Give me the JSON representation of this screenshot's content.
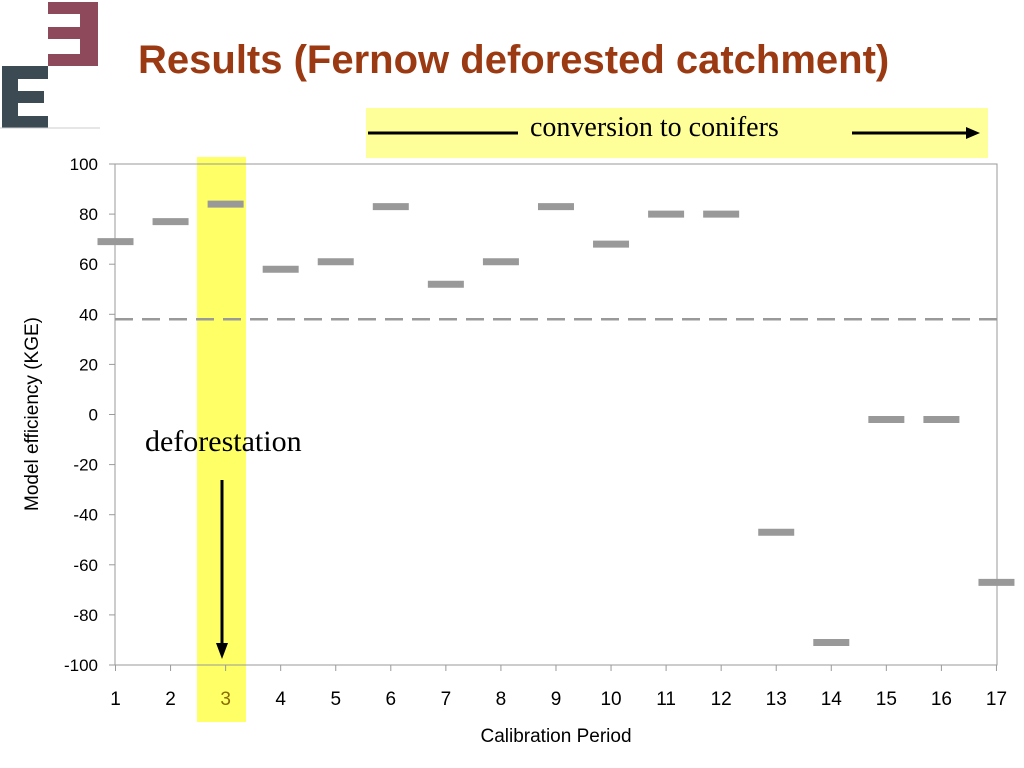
{
  "slide": {
    "title": "Results (Fernow deforested catchment)",
    "logo_name": "E3 logo",
    "banner_text": "conversion to conifers",
    "annotation_text": "deforestation"
  },
  "colors": {
    "title": "#9b3a12",
    "highlight": "#ffff66",
    "banner": "#ffff99",
    "marker": "#999999",
    "reference_line": "#999999",
    "highlight_tick_label": "#8a6d00"
  },
  "chart_data": {
    "type": "scatter",
    "marker": "horizontal-dash",
    "xlabel": "Calibration Period",
    "ylabel": "Model efficiency (KGE)",
    "x": [
      1,
      2,
      3,
      4,
      5,
      6,
      7,
      8,
      9,
      10,
      11,
      12,
      13,
      14,
      15,
      16,
      17
    ],
    "y": [
      69,
      77,
      84,
      58,
      61,
      83,
      52,
      61,
      83,
      68,
      80,
      80,
      -47,
      -91,
      -2,
      -2,
      -67
    ],
    "ylim": [
      -100,
      100
    ],
    "yticks": [
      100,
      80,
      60,
      40,
      20,
      0,
      -20,
      -40,
      -60,
      -80,
      -100
    ],
    "xticks": [
      1,
      2,
      3,
      4,
      5,
      6,
      7,
      8,
      9,
      10,
      11,
      12,
      13,
      14,
      15,
      16,
      17
    ],
    "reference_line": {
      "y": 38,
      "style": "dashed"
    },
    "highlighted_period": 3,
    "grid": false,
    "legend": "none"
  }
}
